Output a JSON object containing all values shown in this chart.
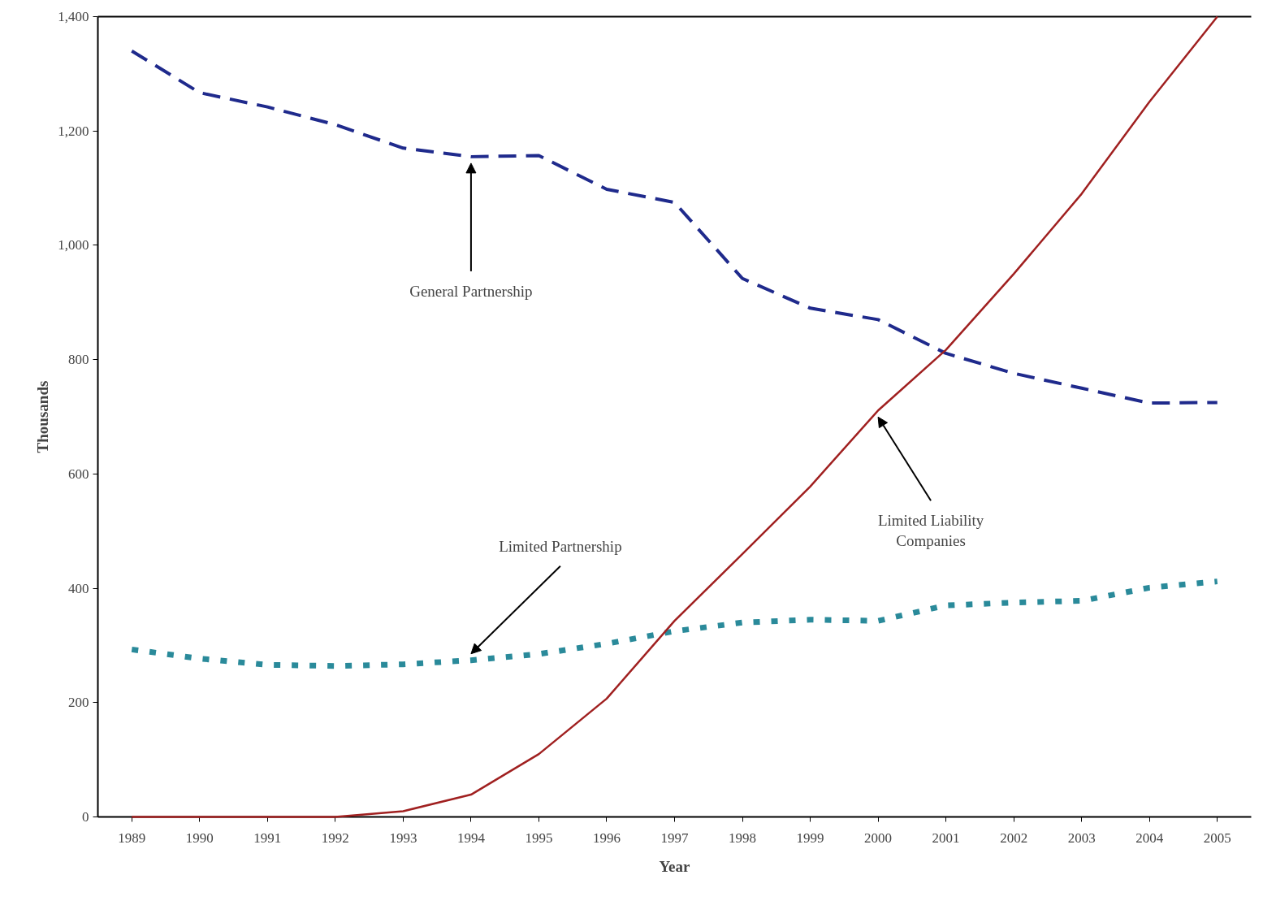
{
  "chart_data": {
    "type": "line",
    "xlabel": "Year",
    "ylabel": "Thousands",
    "categories": [
      "1989",
      "1990",
      "1991",
      "1992",
      "1993",
      "1994",
      "1995",
      "1996",
      "1997",
      "1998",
      "1999",
      "2000",
      "2001",
      "2002",
      "2003",
      "2004",
      "2005"
    ],
    "series": [
      {
        "color": "#1f2a8c",
        "line_style": "dashed",
        "values": [
          1340,
          1267,
          1242,
          1211,
          1170,
          1155,
          1157,
          1098,
          1075,
          942,
          890,
          870,
          811,
          776,
          750,
          724,
          725
        ]
      },
      {
        "color": "#2a8a9a",
        "line_style": "dotted",
        "values": [
          293,
          277,
          266,
          264,
          267,
          274,
          285,
          303,
          325,
          340,
          345,
          343,
          370,
          375,
          378,
          401,
          412
        ]
      },
      {
        "color": "#a02020",
        "line_style": "solid",
        "values": [
          0,
          0,
          0,
          0,
          10,
          39,
          110,
          207,
          343,
          460,
          578,
          711,
          817,
          950,
          1090,
          1251,
          1400
        ]
      }
    ],
    "ylim": [
      0,
      1400
    ],
    "yticks": [
      {
        "value": 0,
        "label": "0"
      },
      {
        "value": 200,
        "label": "200"
      },
      {
        "value": 400,
        "label": "400"
      },
      {
        "value": 600,
        "label": "600"
      },
      {
        "value": 800,
        "label": "800"
      },
      {
        "value": 1000,
        "label": "1,000"
      },
      {
        "value": 1200,
        "label": "1,200"
      },
      {
        "value": 1400,
        "label": "1,400"
      }
    ],
    "annotations": [
      {
        "text": "General Partnership",
        "x": "1994",
        "y": 1155
      },
      {
        "text": "Limited Partnership",
        "x": "1994",
        "y": 274
      },
      {
        "text": "Limited Liability\nCompanies",
        "x": "2000",
        "y": 711
      }
    ],
    "grid": false,
    "marker": "none"
  }
}
